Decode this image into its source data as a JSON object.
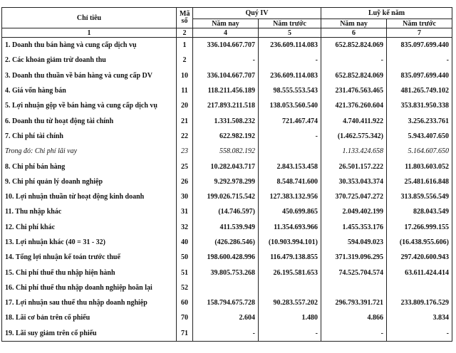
{
  "header": {
    "label": "Chỉ tiêu",
    "code": "Mã số",
    "group_quarter": "Quý IV",
    "group_cumulative": "Luỹ kế năm",
    "columns": [
      "Năm nay",
      "Năm trước",
      "Năm nay",
      "Năm trước"
    ],
    "numbering": [
      "1",
      "2",
      "4",
      "5",
      "6",
      "7"
    ]
  },
  "table": {
    "rows": [
      [
        "1. Doanh thu bán hàng và cung cấp dịch vụ",
        "1",
        "336.104.667.707",
        "236.609.114.083",
        "652.852.824.069",
        "835.097.699.440"
      ],
      [
        "2. Các khoản giảm trừ doanh thu",
        "2",
        "-",
        "-",
        "-",
        "-"
      ],
      [
        "3. Doanh thu thuần về bán hàng và cung cấp DV",
        "10",
        "336.104.667.707",
        "236.609.114.083",
        "652.852.824.069",
        "835.097.699.440"
      ],
      [
        "4. Giá vốn hàng bán",
        "11",
        "118.211.456.189",
        "98.555.553.543",
        "231.476.563.465",
        "481.265.749.102"
      ],
      [
        "5. Lợi nhuận gộp về bán hàng và cung cấp dịch vụ",
        "20",
        "217.893.211.518",
        "138.053.560.540",
        "421.376.260.604",
        "353.831.950.338"
      ],
      [
        "6. Doanh thu từ hoạt động tài chính",
        "21",
        "1.331.508.232",
        "721.467.474",
        "4.740.411.922",
        "3.256.233.761"
      ],
      [
        "7. Chi phí tài chính",
        "22",
        "622.982.192",
        "-",
        "(1.462.575.342)",
        "5.943.407.650"
      ],
      [
        "Trong đó: Chi phí lãi vay",
        "23",
        "558.082.192",
        null,
        "1.133.424.658",
        "5.164.607.650"
      ],
      [
        "8. Chi phí bán hàng",
        "25",
        "10.282.043.717",
        "2.843.153.458",
        "26.501.157.222",
        "11.803.603.052"
      ],
      [
        "9. Chi phí quản lý doanh nghiệp",
        "26",
        "9.292.978.299",
        "8.548.741.600",
        "30.353.043.374",
        "25.481.616.848"
      ],
      [
        "10. Lợi nhuận thuần từ hoạt động kinh doanh",
        "30",
        "199.026.715.542",
        "127.383.132.956",
        "370.725.047.272",
        "313.859.556.549"
      ],
      [
        "11. Thu nhập khác",
        "31",
        "(14.746.597)",
        "450.699.865",
        "2.049.402.199",
        "828.043.549"
      ],
      [
        "12. Chi phí khác",
        "32",
        "411.539.949",
        "11.354.693.966",
        "1.455.353.176",
        "17.266.999.155"
      ],
      [
        "13. Lợi nhuận khác (40 = 31 - 32)",
        "40",
        "(426.286.546)",
        "(10.903.994.101)",
        "594.049.023",
        "(16.438.955.606)"
      ],
      [
        "14. Tổng lợi nhuận kế toán trước thuế",
        "50",
        "198.600.428.996",
        "116.479.138.855",
        "371.319.096.295",
        "297.420.600.943"
      ],
      [
        "15. Chi phí thuế thu nhập hiện hành",
        "51",
        "39.805.753.268",
        "26.195.581.653",
        "74.525.704.574",
        "63.611.424.414"
      ],
      [
        "16. Chi phí thuế thu nhập doanh nghiệp hoãn lại",
        "52",
        null,
        null,
        null,
        null
      ],
      [
        "17. Lợi nhuận sau thuế thu nhập doanh nghiệp",
        "60",
        "158.794.675.728",
        "90.283.557.202",
        "296.793.391.721",
        "233.809.176.529"
      ],
      [
        "18. Lãi cơ bản trên cổ phiếu",
        "70",
        "2.604",
        "1.480",
        "4.866",
        "3.834"
      ],
      [
        "19. Lãi suy giảm trên cổ phiếu",
        "71",
        "-",
        "-",
        "-",
        "-"
      ]
    ]
  }
}
